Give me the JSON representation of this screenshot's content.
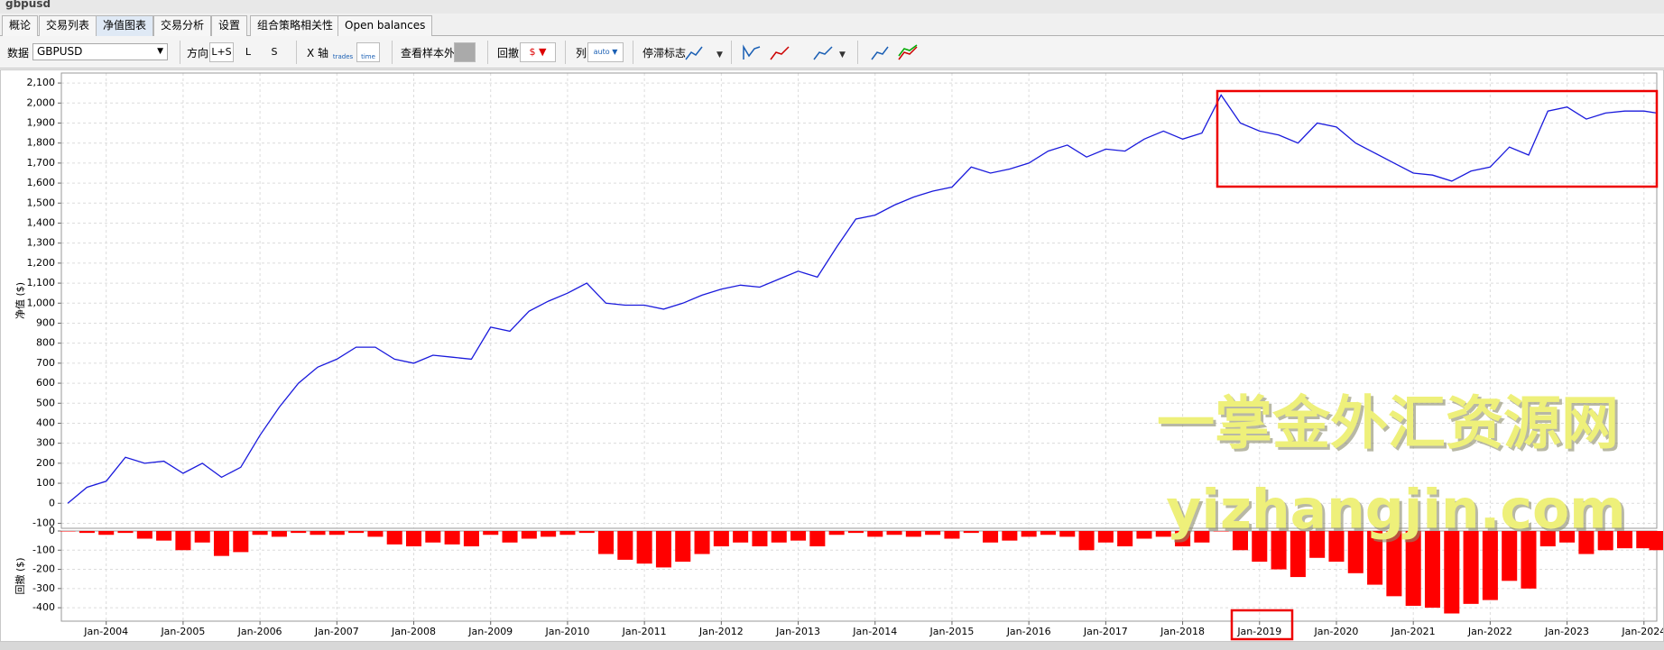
{
  "window_title": "gbpusd",
  "tabs": [
    "概论",
    "交易列表",
    "净值图表",
    "交易分析",
    "设置",
    "组合策略相关性",
    "Open balances"
  ],
  "toolbar": {
    "data_label": "数据",
    "symbol": "GBPUSD",
    "direction_label": "方向",
    "directions": [
      "L+S",
      "L",
      "S"
    ],
    "xaxis_label": "X 轴",
    "xaxis_options": [
      "trades",
      "time"
    ],
    "oos_label": "查看样本外",
    "drawdown_label": "回撤",
    "columns_label": "列",
    "columns_option": "auto",
    "stagnation_label": "停滞标志"
  },
  "watermark": [
    "一掌金外汇资源网",
    "yizhangjin.com"
  ],
  "chart_data": [
    {
      "type": "line",
      "y_label": "净值 ($)",
      "color": "#1a1adc",
      "x": [
        "2003-07",
        "2003-10",
        "2004-01",
        "2004-04",
        "2004-07",
        "2004-10",
        "2005-01",
        "2005-04",
        "2005-07",
        "2005-10",
        "2006-01",
        "2006-04",
        "2006-07",
        "2006-10",
        "2007-01",
        "2007-04",
        "2007-07",
        "2007-10",
        "2008-01",
        "2008-04",
        "2008-07",
        "2008-10",
        "2009-01",
        "2009-04",
        "2009-07",
        "2009-10",
        "2010-01",
        "2010-04",
        "2010-07",
        "2010-10",
        "2011-01",
        "2011-04",
        "2011-07",
        "2011-10",
        "2012-01",
        "2012-04",
        "2012-07",
        "2012-10",
        "2013-01",
        "2013-04",
        "2013-07",
        "2013-10",
        "2014-01",
        "2014-04",
        "2014-07",
        "2014-10",
        "2015-01",
        "2015-04",
        "2015-07",
        "2015-10",
        "2016-01",
        "2016-04",
        "2016-07",
        "2016-10",
        "2017-01",
        "2017-04",
        "2017-07",
        "2017-10",
        "2018-01",
        "2018-04",
        "2018-07",
        "2018-10",
        "2019-01",
        "2019-04",
        "2019-07",
        "2019-10",
        "2020-01",
        "2020-04",
        "2020-07",
        "2020-10",
        "2021-01",
        "2021-04",
        "2021-07",
        "2021-10",
        "2022-01",
        "2022-04",
        "2022-07",
        "2022-10",
        "2023-01",
        "2023-04",
        "2023-07",
        "2023-10",
        "2024-01",
        "2024-03"
      ],
      "values": [
        0,
        80,
        110,
        230,
        200,
        210,
        150,
        200,
        130,
        180,
        340,
        480,
        600,
        680,
        720,
        780,
        780,
        720,
        700,
        740,
        730,
        720,
        880,
        860,
        960,
        1010,
        1050,
        1100,
        1000,
        990,
        990,
        970,
        1000,
        1040,
        1070,
        1090,
        1080,
        1120,
        1160,
        1130,
        1280,
        1420,
        1440,
        1490,
        1530,
        1560,
        1580,
        1680,
        1650,
        1670,
        1700,
        1760,
        1790,
        1730,
        1770,
        1760,
        1820,
        1860,
        1820,
        1850,
        2040,
        1900,
        1860,
        1840,
        1800,
        1900,
        1880,
        1800,
        1750,
        1700,
        1650,
        1640,
        1610,
        1660,
        1680,
        1780,
        1740,
        1960,
        1980,
        1920,
        1950,
        1960,
        1960,
        1950
      ],
      "xlim": [
        "2003-06",
        "2024-03"
      ],
      "ylim": [
        -125,
        2150
      ],
      "yticks": [
        -100,
        0,
        100,
        200,
        300,
        400,
        500,
        600,
        700,
        800,
        900,
        {
          "value": 1000,
          "label": "1,000"
        },
        {
          "value": 1100,
          "label": "1,100"
        },
        {
          "value": 1200,
          "label": "1,200"
        },
        {
          "value": 1300,
          "label": "1,300"
        },
        {
          "value": 1400,
          "label": "1,400"
        },
        {
          "value": 1500,
          "label": "1,500"
        },
        {
          "value": 1600,
          "label": "1,600"
        },
        {
          "value": 1700,
          "label": "1,700"
        },
        {
          "value": 1800,
          "label": "1,800"
        },
        {
          "value": 1900,
          "label": "1,900"
        },
        {
          "value": 2000,
          "label": "2,000"
        },
        {
          "value": 2100,
          "label": "2,100"
        }
      ],
      "grid": true
    },
    {
      "type": "bar",
      "y_label": "回撤 ($)",
      "color": "#ff0000",
      "x": [
        "2003-07",
        "2003-10",
        "2004-01",
        "2004-04",
        "2004-07",
        "2004-10",
        "2005-01",
        "2005-04",
        "2005-07",
        "2005-10",
        "2006-01",
        "2006-04",
        "2006-07",
        "2006-10",
        "2007-01",
        "2007-04",
        "2007-07",
        "2007-10",
        "2008-01",
        "2008-04",
        "2008-07",
        "2008-10",
        "2009-01",
        "2009-04",
        "2009-07",
        "2009-10",
        "2010-01",
        "2010-04",
        "2010-07",
        "2010-10",
        "2011-01",
        "2011-04",
        "2011-07",
        "2011-10",
        "2012-01",
        "2012-04",
        "2012-07",
        "2012-10",
        "2013-01",
        "2013-04",
        "2013-07",
        "2013-10",
        "2014-01",
        "2014-04",
        "2014-07",
        "2014-10",
        "2015-01",
        "2015-04",
        "2015-07",
        "2015-10",
        "2016-01",
        "2016-04",
        "2016-07",
        "2016-10",
        "2017-01",
        "2017-04",
        "2017-07",
        "2017-10",
        "2018-01",
        "2018-04",
        "2018-07",
        "2018-10",
        "2019-01",
        "2019-04",
        "2019-07",
        "2019-10",
        "2020-01",
        "2020-04",
        "2020-07",
        "2020-10",
        "2021-01",
        "2021-04",
        "2021-07",
        "2021-10",
        "2022-01",
        "2022-04",
        "2022-07",
        "2022-10",
        "2023-01",
        "2023-04",
        "2023-07",
        "2023-10",
        "2024-01",
        "2024-03"
      ],
      "values": [
        0,
        -10,
        -20,
        -10,
        -40,
        -50,
        -100,
        -60,
        -130,
        -110,
        -20,
        -30,
        -10,
        -20,
        -20,
        -10,
        -30,
        -70,
        -80,
        -60,
        -70,
        -80,
        -20,
        -60,
        -40,
        -30,
        -20,
        -10,
        -120,
        -150,
        -170,
        -190,
        -160,
        -120,
        -80,
        -60,
        -80,
        -60,
        -50,
        -80,
        -20,
        -10,
        -30,
        -20,
        -30,
        -20,
        -40,
        -10,
        -60,
        -50,
        -30,
        -20,
        -30,
        -100,
        -60,
        -80,
        -40,
        -30,
        -80,
        -60,
        0,
        -100,
        -160,
        -200,
        -240,
        -140,
        -160,
        -220,
        -280,
        -340,
        -390,
        -400,
        -430,
        -380,
        -360,
        -260,
        -300,
        -80,
        -60,
        -120,
        -100,
        -90,
        -90,
        -100
      ],
      "xlim": [
        "2003-06",
        "2024-03"
      ],
      "ylim": [
        -470,
        0
      ],
      "yticks": [
        0,
        -100,
        -200,
        -300,
        -400
      ],
      "xticks": [
        {
          "value": "2004-01",
          "label": "Jan-2004"
        },
        {
          "value": "2005-01",
          "label": "Jan-2005"
        },
        {
          "value": "2006-01",
          "label": "Jan-2006"
        },
        {
          "value": "2007-01",
          "label": "Jan-2007"
        },
        {
          "value": "2008-01",
          "label": "Jan-2008"
        },
        {
          "value": "2009-01",
          "label": "Jan-2009"
        },
        {
          "value": "2010-01",
          "label": "Jan-2010"
        },
        {
          "value": "2011-01",
          "label": "Jan-2011"
        },
        {
          "value": "2012-01",
          "label": "Jan-2012"
        },
        {
          "value": "2013-01",
          "label": "Jan-2013"
        },
        {
          "value": "2014-01",
          "label": "Jan-2014"
        },
        {
          "value": "2015-01",
          "label": "Jan-2015"
        },
        {
          "value": "2016-01",
          "label": "Jan-2016"
        },
        {
          "value": "2017-01",
          "label": "Jan-2017"
        },
        {
          "value": "2018-01",
          "label": "Jan-2018"
        },
        {
          "value": "2019-01",
          "label": "Jan-2019"
        },
        {
          "value": "2020-01",
          "label": "Jan-2020"
        },
        {
          "value": "2021-01",
          "label": "Jan-2021"
        },
        {
          "value": "2022-01",
          "label": "Jan-2022"
        },
        {
          "value": "2023-01",
          "label": "Jan-2023"
        },
        {
          "value": "2024-01",
          "label": "Jan-2024"
        }
      ],
      "grid": true
    }
  ]
}
